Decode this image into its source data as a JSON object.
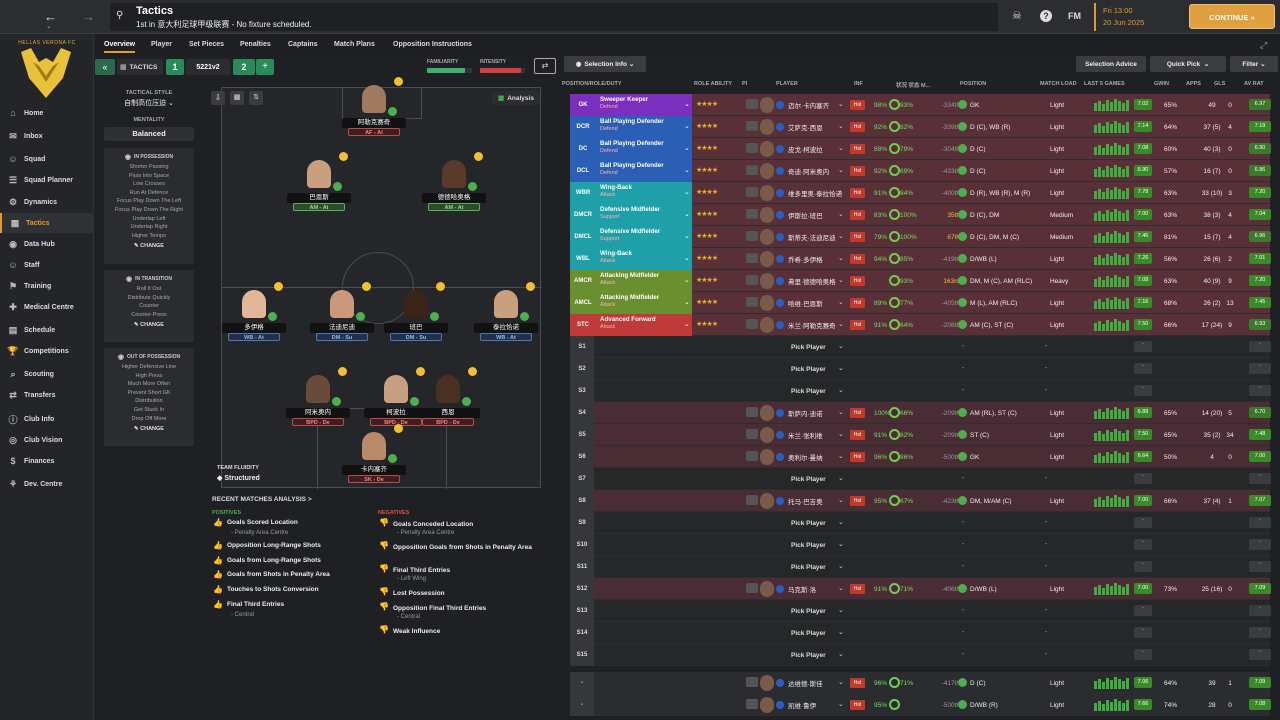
{
  "topbar": {
    "title": "Tactics",
    "subtitle": "1st in 意大利足球甲级联赛 - No fixture scheduled.",
    "fm": "FM",
    "date_line1": "Fri 13:00",
    "date_line2": "20 Jun 2025",
    "continue": "CONTINUE",
    "club": "HELLAS VERONA FC"
  },
  "sidebar": {
    "items": [
      {
        "label": "Home",
        "icon": "home-icon"
      },
      {
        "label": "Inbox",
        "icon": "inbox-icon"
      },
      {
        "label": "Squad",
        "icon": "squad-icon"
      },
      {
        "label": "Squad Planner",
        "icon": "planner-icon"
      },
      {
        "label": "Dynamics",
        "icon": "dynamics-icon"
      },
      {
        "label": "Tactics",
        "icon": "tactics-icon"
      },
      {
        "label": "Data Hub",
        "icon": "datahub-icon"
      },
      {
        "label": "Staff",
        "icon": "staff-icon"
      },
      {
        "label": "Training",
        "icon": "training-icon"
      },
      {
        "label": "Medical Centre",
        "icon": "medical-icon"
      },
      {
        "label": "Schedule",
        "icon": "schedule-icon"
      },
      {
        "label": "Competitions",
        "icon": "trophy-icon"
      },
      {
        "label": "Scouting",
        "icon": "scouting-icon"
      },
      {
        "label": "Transfers",
        "icon": "transfers-icon"
      },
      {
        "label": "Club Info",
        "icon": "info-icon"
      },
      {
        "label": "Club Vision",
        "icon": "vision-icon"
      },
      {
        "label": "Finances",
        "icon": "finances-icon"
      },
      {
        "label": "Dev. Centre",
        "icon": "dev-icon"
      }
    ]
  },
  "subnav": {
    "tabs": [
      "Overview",
      "Player",
      "Set Pieces",
      "Penalties",
      "Captains",
      "Match Plans",
      "Opposition Instructions"
    ]
  },
  "tactics_bar": {
    "label": "TACTICS",
    "slot1": "1",
    "formation": "5221v2",
    "slot2": "2",
    "familiarity": "FAMILIARITY",
    "intensity": "INTENSITY",
    "selection_info": "Selection Info",
    "analysis": "Analysis"
  },
  "left": {
    "tactical_style_label": "TACTICAL STYLE",
    "tactical_style": "自制高位压迫",
    "mentality_label": "MENTALITY",
    "mentality": "Balanced",
    "in_possession": {
      "title": "IN POSSESSION",
      "lines": [
        "Shorter Passing",
        "Pass Into Space",
        "Low Crosses",
        "Run At Defence",
        "Focus Play Down The Left",
        "Focus Play Down The Right",
        "Underlap Left",
        "Underlap Right",
        "Higher Tempo"
      ]
    },
    "in_transition": {
      "title": "IN TRANSITION",
      "lines": [
        "Roll It Out",
        "Distribute Quickly",
        "Counter",
        "Counter-Press"
      ]
    },
    "out_of_possession": {
      "title": "OUT OF POSSESSION",
      "lines": [
        "Higher Defensive Line",
        "High Press",
        "Much More Often",
        "Prevent Short GK",
        "Distribution",
        "Get Stuck In",
        "Drop Off More"
      ]
    },
    "change": "CHANGE",
    "team_fluidity_label": "TEAM FLUIDITY",
    "team_fluidity": "Structured"
  },
  "pitch_players": [
    {
      "name": "阿勒克赛奇",
      "role": "AF - At",
      "cls": "de"
    },
    {
      "name": "巴恩斯",
      "role": "AM - At",
      "cls": "at"
    },
    {
      "name": "德德哈奥格",
      "role": "AM - At",
      "cls": "at"
    },
    {
      "name": "多伊格",
      "role": "WB - At",
      "cls": "su"
    },
    {
      "name": "法迪尼迪",
      "role": "DM - Su",
      "cls": "su"
    },
    {
      "name": "班巴",
      "role": "DM - Su",
      "cls": "su"
    },
    {
      "name": "泰拉恰诺",
      "role": "WB - At",
      "cls": "su"
    },
    {
      "name": "阿米奥内",
      "role": "BPD - De",
      "cls": "de"
    },
    {
      "name": "柯波拉",
      "role": "BPD - De",
      "cls": "de"
    },
    {
      "name": "西恩",
      "role": "BPD - De",
      "cls": "de"
    },
    {
      "name": "卡内塞齐",
      "role": "SK - De",
      "cls": "de"
    }
  ],
  "analysis": {
    "title": "RECENT MATCHES ANALYSIS >",
    "positives_label": "POSITIVES",
    "negatives_label": "NEGATIVES",
    "positives": [
      [
        "Goals Scored Location",
        "- Penalty Area Centre"
      ],
      [
        "Opposition Long-Range Shots",
        ""
      ],
      [
        "Goals from Long-Range Shots",
        ""
      ],
      [
        "Goals from Shots in Penalty Area",
        ""
      ],
      [
        "Touches to Shots Conversion",
        ""
      ],
      [
        "Final Third Entries",
        "- Central"
      ]
    ],
    "negatives": [
      [
        "Goals Conceded Location",
        "- Penalty Area Centre"
      ],
      [
        "Opposition Goals from Shots in Penalty Area",
        ""
      ],
      [
        "Final Third Entries",
        "- Left Wing"
      ],
      [
        "Lost Possession",
        ""
      ],
      [
        "Opposition Final Third Entries",
        "- Central"
      ],
      [
        "Weak Influence",
        ""
      ]
    ]
  },
  "right": {
    "selection_advice": "Selection Advice",
    "quick_pick": "Quick Pick",
    "filter": "Filter",
    "headers": {
      "pos": "POSITION/ROLE/DUTY",
      "ability": "ROLE ABILITY",
      "pi": "PI",
      "player": "PLAYER",
      "inf": "INF",
      "sharp": "状况 状态 M...",
      "position": "POSITION",
      "load": "MATCH LOAD",
      "last5": "LAST 5 GAMES",
      "gwin": "GWIN",
      "apps": "APPS",
      "gls": "GLS",
      "avrat": "AV RAT"
    },
    "starters": [
      {
        "pos": "GK",
        "role": "Sweeper Keeper",
        "duty": "Defend",
        "color": "#7b2fbf",
        "name": "迈尔·卡内塞齐",
        "cond": "98%",
        "sharp": "83%",
        "val": "-334th",
        "position": "GK",
        "load": "Light",
        "rating": "7.02",
        "gwin": "65%",
        "apps": "49",
        "gls": "0",
        "av": "6.97",
        "avc": "#3a7a2a"
      },
      {
        "pos": "DCR",
        "role": "Ball Playing Defender",
        "duty": "Defend",
        "color": "#2b5fb5",
        "name": "艾萨克·西恩",
        "cond": "92%",
        "sharp": "82%",
        "val": "-339th",
        "position": "D (C), WB (R)",
        "load": "Light",
        "rating": "7.14",
        "gwin": "64%",
        "apps": "37 (5)",
        "gls": "4",
        "av": "7.19",
        "avc": "#3a8a2a"
      },
      {
        "pos": "DC",
        "role": "Ball Playing Defender",
        "duty": "Defend",
        "color": "#2b5fb5",
        "name": "皮戈·柯波拉",
        "cond": "88%",
        "sharp": "79%",
        "val": "-304th",
        "position": "D (C)",
        "load": "Light",
        "rating": "7.08",
        "gwin": "60%",
        "apps": "40 (3)",
        "gls": "0",
        "av": "6.90",
        "avc": "#3a7a2a"
      },
      {
        "pos": "DCL",
        "role": "Ball Playing Defender",
        "duty": "Defend",
        "color": "#2b5fb5",
        "name": "奇迪·阿米奥内",
        "cond": "92%",
        "sharp": "69%",
        "val": "-433th",
        "position": "D (C)",
        "load": "Light",
        "rating": "6.90",
        "gwin": "57%",
        "apps": "16 (7)",
        "gls": "0",
        "av": "6.86",
        "avc": "#3a7a2a"
      },
      {
        "pos": "WBR",
        "role": "Wing-Back",
        "duty": "Attack",
        "color": "#1fa0a8",
        "name": "维多里奥·泰拉恰诺",
        "cond": "91%",
        "sharp": "84%",
        "val": "-400th",
        "position": "D (R), WB (R), M (R)",
        "load": "Light",
        "rating": "7.78",
        "gwin": "63%",
        "apps": "33 (10)",
        "gls": "3",
        "av": "7.20",
        "avc": "#3a8a2a"
      },
      {
        "pos": "DMCR",
        "role": "Defensive Midfielder",
        "duty": "Support",
        "color": "#1fa0a8",
        "name": "伊斯拉·班巴",
        "cond": "83%",
        "sharp": "100%",
        "val": "35th",
        "position": "D (C), DM",
        "load": "Medium",
        "rating": "7.00",
        "gwin": "63%",
        "apps": "38 (3)",
        "gls": "4",
        "av": "7.04",
        "avc": "#3a8a2a"
      },
      {
        "pos": "DMCL",
        "role": "Defensive Midfielder",
        "duty": "Support",
        "color": "#1fa0a8",
        "name": "斯蒂夫·法迪尼迪",
        "cond": "79%",
        "sharp": "100%",
        "val": "67th",
        "position": "D (C), DM, M (C)",
        "load": "Medium",
        "rating": "7.46",
        "gwin": "81%",
        "apps": "15 (7)",
        "gls": "4",
        "av": "6.96",
        "avc": "#3a7a2a"
      },
      {
        "pos": "WBL",
        "role": "Wing-Back",
        "duty": "Attack",
        "color": "#1fa0a8",
        "name": "乔希·多伊格",
        "cond": "94%",
        "sharp": "85%",
        "val": "-419th",
        "position": "D/WB (L)",
        "load": "Light",
        "rating": "7.26",
        "gwin": "56%",
        "apps": "26 (6)",
        "gls": "2",
        "av": "7.01",
        "avc": "#3a8a2a"
      },
      {
        "pos": "AMCR",
        "role": "Attacking Midfielder",
        "duty": "Attack",
        "color": "#6a8f2f",
        "name": "弗里·德德哈奥格",
        "cond": "",
        "sharp": "93%",
        "val": "163rd",
        "position": "DM, M (C), AM (RLC)",
        "load": "Heavy",
        "rating": "7.08",
        "gwin": "63%",
        "apps": "40 (9)",
        "gls": "9",
        "av": "7.20",
        "avc": "#3a8a2a"
      },
      {
        "pos": "AMCL",
        "role": "Attacking Midfielder",
        "duty": "Attack",
        "color": "#6a8f2f",
        "name": "哈维·巴恩斯",
        "cond": "89%",
        "sharp": "77%",
        "val": "-405th",
        "position": "M (L), AM (RLC)",
        "load": "Light",
        "rating": "7.16",
        "gwin": "68%",
        "apps": "26 (2)",
        "gls": "13",
        "av": "7.45",
        "avc": "#3a8a2a"
      },
      {
        "pos": "STC",
        "role": "Advanced Forward",
        "duty": "Attack",
        "color": "#c03a3a",
        "name": "米兰·阿勒克赛奇",
        "cond": "91%",
        "sharp": "64%",
        "val": "-208th",
        "position": "AM (C), ST (C)",
        "load": "Light",
        "rating": "7.50",
        "gwin": "66%",
        "apps": "17 (24)",
        "gls": "9",
        "av": "6.93",
        "avc": "#3a7a2a"
      }
    ],
    "subs": [
      {
        "slot": "S1",
        "name": "Pick Player"
      },
      {
        "slot": "S2",
        "name": "Pick Player"
      },
      {
        "slot": "S3",
        "name": "Pick Player"
      },
      {
        "slot": "S4",
        "name": "斯萨内·迪诺",
        "cond": "100%",
        "sharp": "66%",
        "val": "-209th",
        "position": "AM (RL), ST (C)",
        "load": "Light",
        "rating": "6.88",
        "gwin": "65%",
        "apps": "14 (20)",
        "gls": "5",
        "av": "6.70",
        "avc": "#3a7a2a"
      },
      {
        "slot": "S5",
        "name": "米兰·张利维",
        "cond": "91%",
        "sharp": "82%",
        "val": "-209th",
        "position": "ST (C)",
        "load": "Light",
        "rating": "7.50",
        "gwin": "65%",
        "apps": "35 (2)",
        "gls": "34",
        "av": "7.48",
        "avc": "#3a8a2a"
      },
      {
        "slot": "S6",
        "name": "奥利尔·曼纳",
        "cond": "96%",
        "sharp": "86%",
        "val": "-500th",
        "position": "GK",
        "load": "Light",
        "rating": "6.64",
        "gwin": "50%",
        "apps": "4",
        "gls": "0",
        "av": "7.00",
        "avc": "#3a8a2a"
      },
      {
        "slot": "S7",
        "name": "Pick Player"
      },
      {
        "slot": "S8",
        "name": "托马·巴吉奥",
        "cond": "95%",
        "sharp": "67%",
        "val": "-423th",
        "position": "DM, M/AM (C)",
        "load": "Light",
        "rating": "7.00",
        "gwin": "66%",
        "apps": "37 (4)",
        "gls": "1",
        "av": "7.07",
        "avc": "#3a8a2a"
      },
      {
        "slot": "S9",
        "name": "Pick Player"
      },
      {
        "slot": "S10",
        "name": "Pick Player"
      },
      {
        "slot": "S11",
        "name": "Pick Player"
      },
      {
        "slot": "S12",
        "name": "马克斯·洛",
        "cond": "91%",
        "sharp": "71%",
        "val": "-406th",
        "position": "D/WB (L)",
        "load": "Light",
        "rating": "7.00",
        "gwin": "73%",
        "apps": "25 (16)",
        "gls": "0",
        "av": "7.09",
        "avc": "#3a8a2a"
      },
      {
        "slot": "S13",
        "name": "Pick Player"
      },
      {
        "slot": "S14",
        "name": "Pick Player"
      },
      {
        "slot": "S15",
        "name": "Pick Player"
      }
    ],
    "reserves": [
      {
        "slot": "-",
        "name": "达维德·斯佳",
        "cond": "96%",
        "sharp": "71%",
        "val": "-417th",
        "position": "D (C)",
        "load": "Light",
        "rating": "7.06",
        "gwin": "64%",
        "apps": "39",
        "gls": "1",
        "av": "7.09",
        "avc": "#3a8a2a"
      },
      {
        "slot": "-",
        "name": "凯维·鲁伊",
        "cond": "95%",
        "sharp": "",
        "val": "-500th",
        "position": "D/WB (R)",
        "load": "Light",
        "rating": "7.66",
        "gwin": "74%",
        "apps": "28",
        "gls": "0",
        "av": "7.08",
        "avc": "#3a8a2a"
      }
    ]
  }
}
